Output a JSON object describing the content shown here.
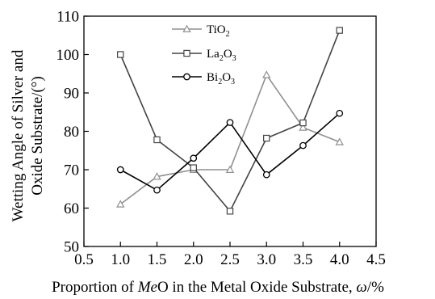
{
  "chart_data": {
    "type": "line",
    "xlabel": "Proportion of MeO in the Metal Oxide Substrate, ω/%",
    "xlabel_parts": [
      "Proportion of ",
      "Me",
      "O in the Metal Oxide Substrate, ",
      "ω",
      "/%"
    ],
    "ylabel_lines": [
      "Wetting Angle of Silver and",
      "Oxide Substrate/(°)"
    ],
    "xlim": [
      0.5,
      4.5
    ],
    "ylim": [
      50,
      110
    ],
    "xticks": [
      "0.5",
      "1.0",
      "1.5",
      "2.0",
      "2.5",
      "3.0",
      "3.5",
      "4.0",
      "4.5"
    ],
    "yticks": [
      "50",
      "60",
      "70",
      "80",
      "90",
      "100",
      "110"
    ],
    "x": [
      1.0,
      1.5,
      2.0,
      2.5,
      3.0,
      3.5,
      4.0
    ],
    "grid": false,
    "legend_position": "top-center",
    "series": [
      {
        "name": "TiO₂",
        "label_base": "TiO",
        "label_sub": "2",
        "marker": "triangle",
        "color": "#909090",
        "values": [
          61,
          68.2,
          70,
          70,
          94.7,
          81,
          77.2
        ]
      },
      {
        "name": "La₂O₃",
        "label_base": "La",
        "label_sub": "2",
        "label_mid": "O",
        "label_sub2": "3",
        "marker": "square",
        "color": "#444444",
        "values": [
          100,
          77.8,
          70.5,
          59.2,
          78.2,
          82.2,
          106.3
        ]
      },
      {
        "name": "Bi₂O₃",
        "label_base": "Bi",
        "label_sub": "2",
        "label_mid": "O",
        "label_sub2": "3",
        "marker": "circle",
        "color": "#000000",
        "values": [
          70,
          64.7,
          73,
          82.3,
          68.7,
          76.3,
          84.7
        ]
      }
    ]
  }
}
